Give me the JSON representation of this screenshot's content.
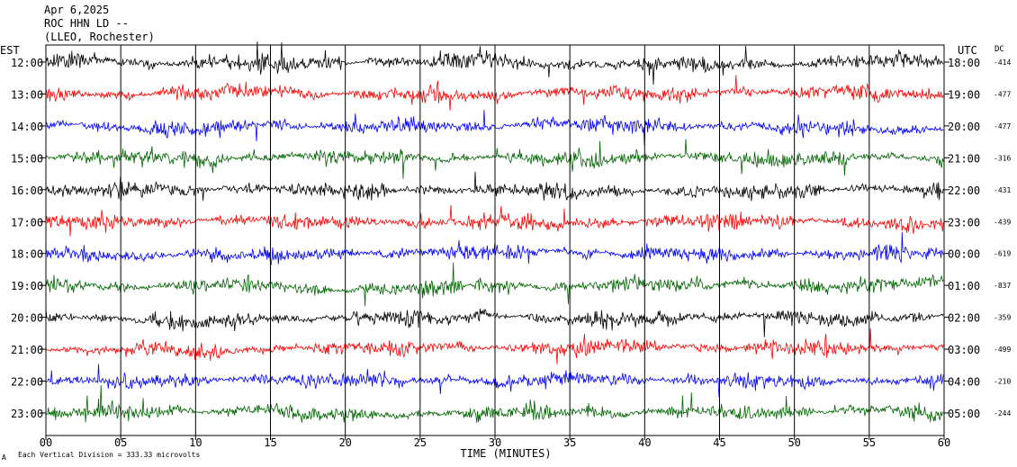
{
  "header": {
    "date": "Apr 6,2025",
    "station": "ROC HHN LD --",
    "location": "(LLEO, Rochester)"
  },
  "left_axis_label": "EST",
  "right_axis_label": "UTC",
  "dc_label": "DC",
  "footer": {
    "mark": "A",
    "division_note": "Each Vertical Division =  333.33 microvolts"
  },
  "colors": {
    "black": "#000000",
    "red": "#ff0000",
    "blue": "#0000ff",
    "green": "#006400"
  },
  "chart_data": {
    "type": "line",
    "title": "",
    "xlabel": "TIME (MINUTES)",
    "ylabel": "",
    "xlim": [
      0,
      60
    ],
    "x_ticks": [
      "00",
      "05",
      "10",
      "15",
      "20",
      "25",
      "30",
      "35",
      "40",
      "45",
      "50",
      "55",
      "60"
    ],
    "grid": "vertical lines every 5 minutes",
    "series": [
      {
        "est": "12:00",
        "utc": "18:00",
        "dc": "-414",
        "color": "black"
      },
      {
        "est": "13:00",
        "utc": "19:00",
        "dc": "-477",
        "color": "red"
      },
      {
        "est": "14:00",
        "utc": "20:00",
        "dc": "-477",
        "color": "blue"
      },
      {
        "est": "15:00",
        "utc": "21:00",
        "dc": "-316",
        "color": "green"
      },
      {
        "est": "16:00",
        "utc": "22:00",
        "dc": "-431",
        "color": "black"
      },
      {
        "est": "17:00",
        "utc": "23:00",
        "dc": "-439",
        "color": "red"
      },
      {
        "est": "18:00",
        "utc": "00:00",
        "dc": "-619",
        "color": "blue"
      },
      {
        "est": "19:00",
        "utc": "01:00",
        "dc": "-837",
        "color": "green"
      },
      {
        "est": "20:00",
        "utc": "02:00",
        "dc": "-359",
        "color": "black"
      },
      {
        "est": "21:00",
        "utc": "03:00",
        "dc": "-499",
        "color": "red"
      },
      {
        "est": "22:00",
        "utc": "04:00",
        "dc": "-210",
        "color": "blue"
      },
      {
        "est": "23:00",
        "utc": "05:00",
        "dc": "-244",
        "color": "green"
      }
    ]
  }
}
